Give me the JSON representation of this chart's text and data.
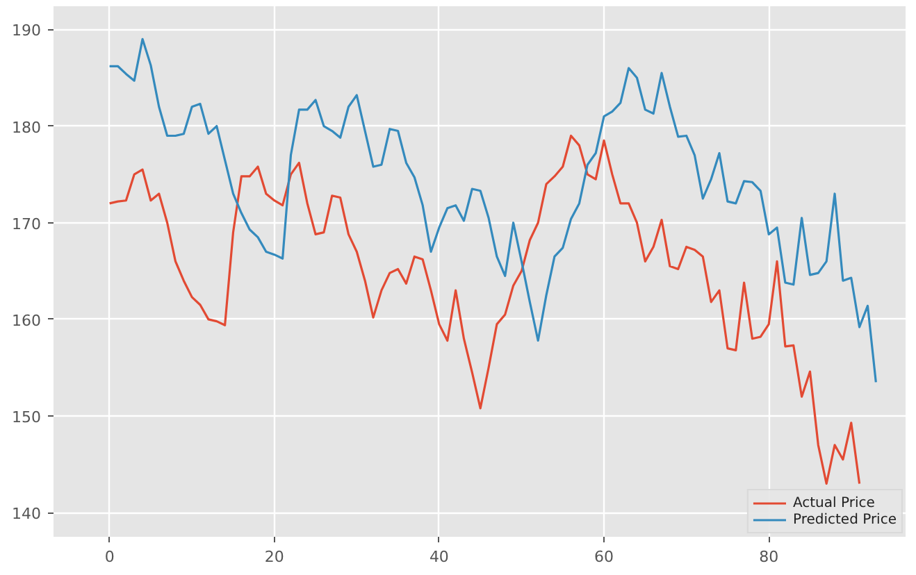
{
  "chart_data": {
    "type": "line",
    "x": [
      0,
      1,
      2,
      3,
      4,
      5,
      6,
      7,
      8,
      9,
      10,
      11,
      12,
      13,
      14,
      15,
      16,
      17,
      18,
      19,
      20,
      21,
      22,
      23,
      24,
      25,
      26,
      27,
      28,
      29,
      30,
      31,
      32,
      33,
      34,
      35,
      36,
      37,
      38,
      39,
      40,
      41,
      42,
      43,
      44,
      45,
      46,
      47,
      48,
      49,
      50,
      51,
      52,
      53,
      54,
      55,
      56,
      57,
      58,
      59,
      60,
      61,
      62,
      63,
      64,
      65,
      66,
      67,
      68,
      69,
      70,
      71,
      72,
      73,
      74,
      75,
      76,
      77,
      78,
      79,
      80,
      81,
      82,
      83,
      84,
      85,
      86,
      87,
      88,
      89,
      90,
      91,
      92,
      93
    ],
    "series": [
      {
        "name": "Actual Price",
        "color": "#e24a33",
        "values": [
          172,
          172.2,
          172.3,
          175,
          175.5,
          172.3,
          173,
          170,
          166,
          164,
          162.3,
          161.5,
          160,
          159.8,
          159.4,
          169,
          174.8,
          174.8,
          175.8,
          173,
          172.3,
          171.8,
          175,
          176.2,
          172,
          168.8,
          169,
          172.8,
          172.6,
          168.8,
          167,
          164,
          160.2,
          163,
          164.8,
          165.2,
          163.7,
          166.5,
          166.2,
          163,
          159.5,
          157.8,
          163,
          158,
          154.5,
          150.8,
          155,
          159.5,
          160.5,
          163.5,
          165,
          168.2,
          170,
          174,
          174.8,
          175.8,
          179,
          178,
          175,
          174.5,
          178.5,
          175,
          172,
          172,
          170,
          166,
          167.5,
          170.3,
          165.5,
          165.2,
          167.5,
          167.2,
          166.5,
          161.8,
          163,
          157,
          156.8,
          163.8,
          158,
          158.2,
          159.5,
          166,
          157.2,
          157.3,
          152,
          154.6,
          147,
          143,
          147,
          145.5,
          149.3,
          143,
          null,
          null
        ]
      },
      {
        "name": "Predicted Price",
        "color": "#348abd",
        "values": [
          186.2,
          186.2,
          185.4,
          184.7,
          189,
          186.3,
          182,
          179,
          179,
          179.2,
          182,
          182.3,
          179.2,
          180,
          176.5,
          173,
          171,
          169.3,
          168.5,
          167,
          166.7,
          166.3,
          177,
          181.7,
          181.7,
          182.7,
          180,
          179.5,
          178.8,
          182,
          183.2,
          179.5,
          175.8,
          176,
          179.7,
          179.5,
          176.2,
          174.7,
          171.8,
          167,
          169.5,
          171.5,
          171.8,
          170.2,
          173.5,
          173.3,
          170.5,
          166.5,
          164.5,
          170,
          166,
          161.8,
          157.8,
          162.5,
          166.5,
          167.4,
          170.4,
          172,
          176,
          177.2,
          181,
          181.5,
          182.4,
          186,
          185,
          181.7,
          181.3,
          185.5,
          182,
          178.9,
          179,
          177,
          172.5,
          174.5,
          177.2,
          172.2,
          172,
          174.3,
          174.2,
          173.3,
          168.8,
          169.5,
          163.8,
          163.6,
          170.5,
          164.6,
          164.8,
          166,
          173,
          164,
          164.3,
          159.2,
          161.4,
          153.5
        ]
      }
    ],
    "xlim": [
      -6.8,
      96.6
    ],
    "ylim": [
      137.5,
      192.4
    ],
    "xticks": [
      0,
      20,
      40,
      60,
      80
    ],
    "yticks": [
      140,
      150,
      160,
      170,
      180,
      190
    ],
    "grid": true,
    "legend": "bottom right",
    "line_style": "solid",
    "marker": "none"
  }
}
